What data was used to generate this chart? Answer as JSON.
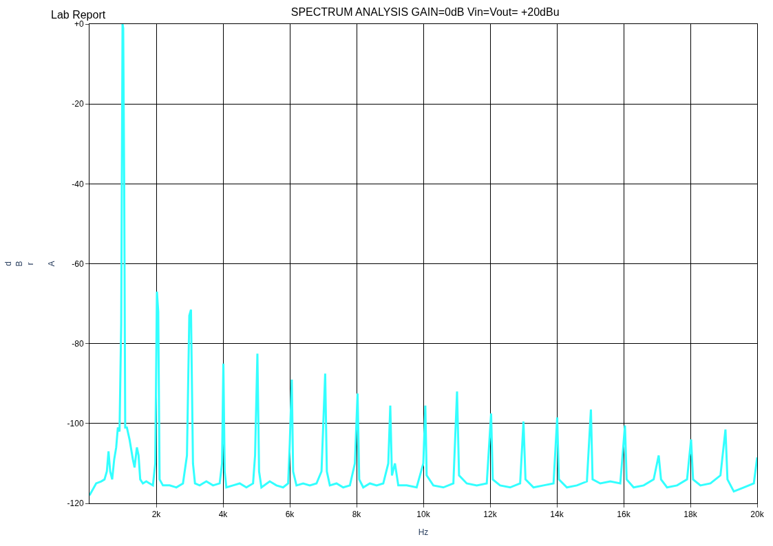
{
  "chart_data": {
    "type": "line",
    "title": "SPECTRUM ANALYSIS GAIN=0dB Vin=Vout= +20dBu",
    "annotations": [
      "Lab Report"
    ],
    "xlabel": "Hz",
    "ylabel": "dBr A",
    "xlim": [
      0,
      20000
    ],
    "xticks": [
      {
        "value": 2000,
        "label": "2k"
      },
      {
        "value": 4000,
        "label": "4k"
      },
      {
        "value": 6000,
        "label": "6k"
      },
      {
        "value": 8000,
        "label": "8k"
      },
      {
        "value": 10000,
        "label": "10k"
      },
      {
        "value": 12000,
        "label": "12k"
      },
      {
        "value": 14000,
        "label": "14k"
      },
      {
        "value": 16000,
        "label": "16k"
      },
      {
        "value": 18000,
        "label": "18k"
      },
      {
        "value": 20000,
        "label": "20k"
      }
    ],
    "ylim": [
      -120,
      0
    ],
    "yticks": [
      -120,
      -100,
      -80,
      -60,
      -40,
      -20,
      {
        "value": 0,
        "label": "+0"
      }
    ],
    "grid": true,
    "legend": false,
    "marker": "none",
    "line_style": "solid",
    "series": [
      {
        "color": "#33ffff",
        "x": [
          0,
          100,
          200,
          350,
          450,
          520,
          570,
          620,
          680,
          740,
          800,
          850,
          900,
          950,
          990,
          1010,
          1040,
          1070,
          1120,
          1200,
          1300,
          1350,
          1420,
          1470,
          1520,
          1600,
          1700,
          1800,
          1900,
          1970,
          2020,
          2060,
          2100,
          2200,
          2400,
          2600,
          2800,
          2920,
          2990,
          3040,
          3100,
          3160,
          3300,
          3500,
          3700,
          3900,
          3970,
          4010,
          4050,
          4100,
          4300,
          4500,
          4700,
          4900,
          4960,
          5030,
          5080,
          5150,
          5400,
          5600,
          5800,
          5950,
          6000,
          6060,
          6100,
          6200,
          6400,
          6600,
          6800,
          6950,
          7060,
          7110,
          7200,
          7400,
          7600,
          7800,
          7950,
          8030,
          8080,
          8200,
          8400,
          8600,
          8800,
          8950,
          9010,
          9060,
          9150,
          9250,
          9500,
          9800,
          10000,
          10060,
          10100,
          10300,
          10600,
          10900,
          11010,
          11070,
          11300,
          11600,
          11900,
          12030,
          12080,
          12300,
          12600,
          12900,
          13000,
          13060,
          13300,
          13600,
          13900,
          14010,
          14060,
          14300,
          14600,
          14900,
          15020,
          15070,
          15300,
          15600,
          15900,
          16040,
          16090,
          16300,
          16600,
          16900,
          17050,
          17120,
          17300,
          17600,
          17900,
          18020,
          18080,
          18300,
          18600,
          18900,
          19050,
          19110,
          19300,
          19600,
          19900,
          20000
        ],
        "values": [
          -118,
          -116.5,
          -115,
          -114.5,
          -114,
          -112,
          -107,
          -112,
          -114,
          -109,
          -106,
          -101,
          -102,
          -75,
          0,
          -1,
          -40,
          -101,
          -101,
          -104,
          -109,
          -111,
          -106,
          -108,
          -114,
          -115,
          -114.5,
          -115,
          -115.5,
          -110,
          -67,
          -72,
          -114,
          -115.5,
          -115.5,
          -116,
          -115,
          -108,
          -73,
          -71.5,
          -110,
          -115,
          -115.5,
          -114.5,
          -115.5,
          -115,
          -110,
          -85,
          -112,
          -116,
          -115.5,
          -115,
          -116,
          -115,
          -108,
          -82.5,
          -112,
          -116,
          -114.5,
          -115.5,
          -116,
          -115,
          -105,
          -89,
          -112,
          -115.5,
          -115,
          -115.5,
          -115,
          -112,
          -87.5,
          -112,
          -115.5,
          -115,
          -116,
          -115.5,
          -110,
          -92.5,
          -114,
          -116,
          -115,
          -115.5,
          -115,
          -110,
          -95.5,
          -113,
          -110,
          -115.5,
          -115.5,
          -116,
          -110,
          -95.5,
          -113,
          -115.5,
          -116,
          -115,
          -92,
          -113,
          -115,
          -115.5,
          -115,
          -97.5,
          -114,
          -115.5,
          -116,
          -115,
          -99.5,
          -114,
          -116,
          -115.5,
          -115,
          -98.5,
          -114,
          -116,
          -115.5,
          -114.5,
          -96.5,
          -114,
          -115,
          -114.5,
          -115,
          -100.5,
          -114,
          -116,
          -115.5,
          -114,
          -108,
          -114,
          -116,
          -115.5,
          -114,
          -104,
          -114,
          -115.5,
          -115,
          -113,
          -101.5,
          -114,
          -117,
          -116,
          -115,
          -108.5
        ]
      }
    ]
  }
}
